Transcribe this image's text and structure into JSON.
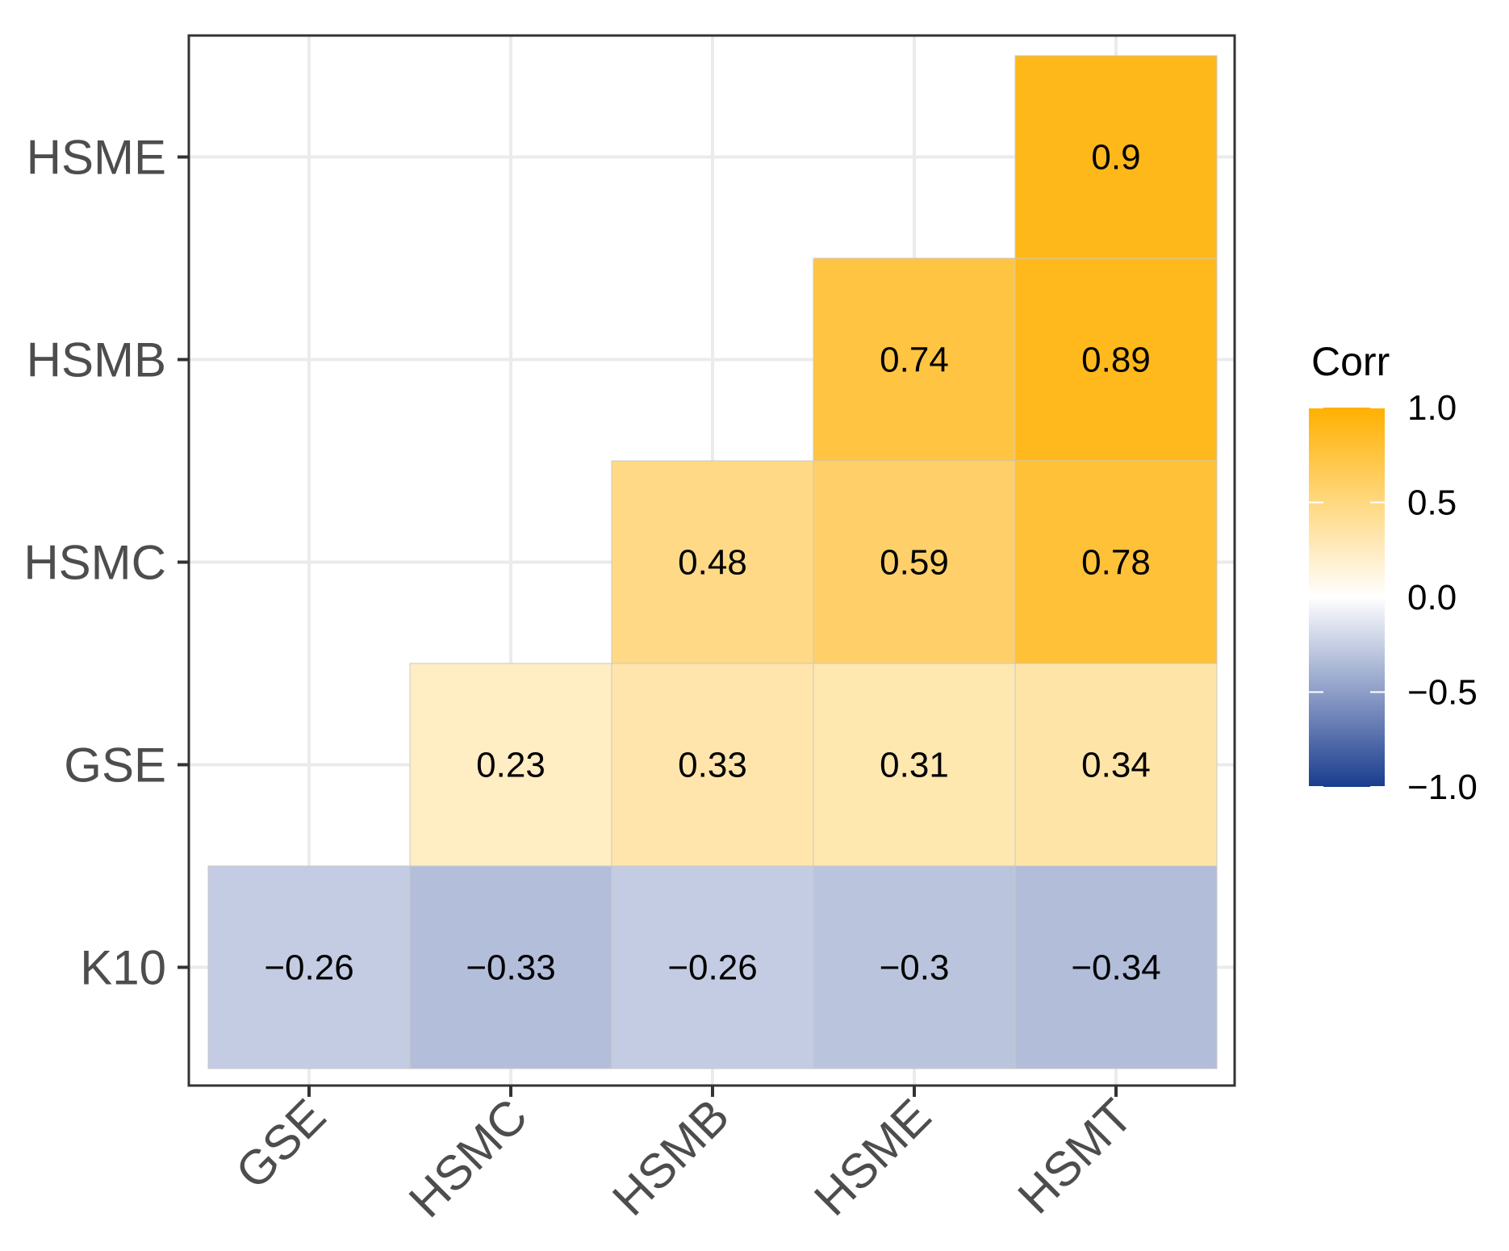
{
  "chart_data": {
    "type": "heatmap",
    "title": "",
    "xlabel": "",
    "ylabel": "",
    "x_categories": [
      "GSE",
      "HSMC",
      "HSMB",
      "HSME",
      "HSMT"
    ],
    "y_categories": [
      "K10",
      "GSE",
      "HSMC",
      "HSMB",
      "HSME"
    ],
    "cells": [
      {
        "x": "GSE",
        "y": "K10",
        "value": -0.26,
        "label": "−0.26"
      },
      {
        "x": "HSMC",
        "y": "K10",
        "value": -0.33,
        "label": "−0.33"
      },
      {
        "x": "HSMB",
        "y": "K10",
        "value": -0.26,
        "label": "−0.26"
      },
      {
        "x": "HSME",
        "y": "K10",
        "value": -0.3,
        "label": "−0.3"
      },
      {
        "x": "HSMT",
        "y": "K10",
        "value": -0.34,
        "label": "−0.34"
      },
      {
        "x": "HSMC",
        "y": "GSE",
        "value": 0.23,
        "label": "0.23"
      },
      {
        "x": "HSMB",
        "y": "GSE",
        "value": 0.33,
        "label": "0.33"
      },
      {
        "x": "HSME",
        "y": "GSE",
        "value": 0.31,
        "label": "0.31"
      },
      {
        "x": "HSMT",
        "y": "GSE",
        "value": 0.34,
        "label": "0.34"
      },
      {
        "x": "HSMB",
        "y": "HSMC",
        "value": 0.48,
        "label": "0.48"
      },
      {
        "x": "HSME",
        "y": "HSMC",
        "value": 0.59,
        "label": "0.59"
      },
      {
        "x": "HSMT",
        "y": "HSMC",
        "value": 0.78,
        "label": "0.78"
      },
      {
        "x": "HSME",
        "y": "HSMB",
        "value": 0.74,
        "label": "0.74"
      },
      {
        "x": "HSMT",
        "y": "HSMB",
        "value": 0.89,
        "label": "0.89"
      },
      {
        "x": "HSMT",
        "y": "HSME",
        "value": 0.9,
        "label": "0.9"
      }
    ],
    "legend": {
      "title": "Corr",
      "range": [
        -1.0,
        1.0
      ],
      "ticks": [
        1.0,
        0.5,
        0.0,
        -0.5,
        -1.0
      ],
      "tick_labels": [
        "1.0",
        "0.5",
        "0.0",
        "−0.5",
        "−1.0"
      ],
      "position": "right"
    },
    "colors": {
      "low": "#1a3c8f",
      "mid": "#ffffff",
      "high": "#ffb000",
      "grid": "#ebebeb",
      "frame": "#333333",
      "cell_border": "#c8c8c8"
    }
  }
}
